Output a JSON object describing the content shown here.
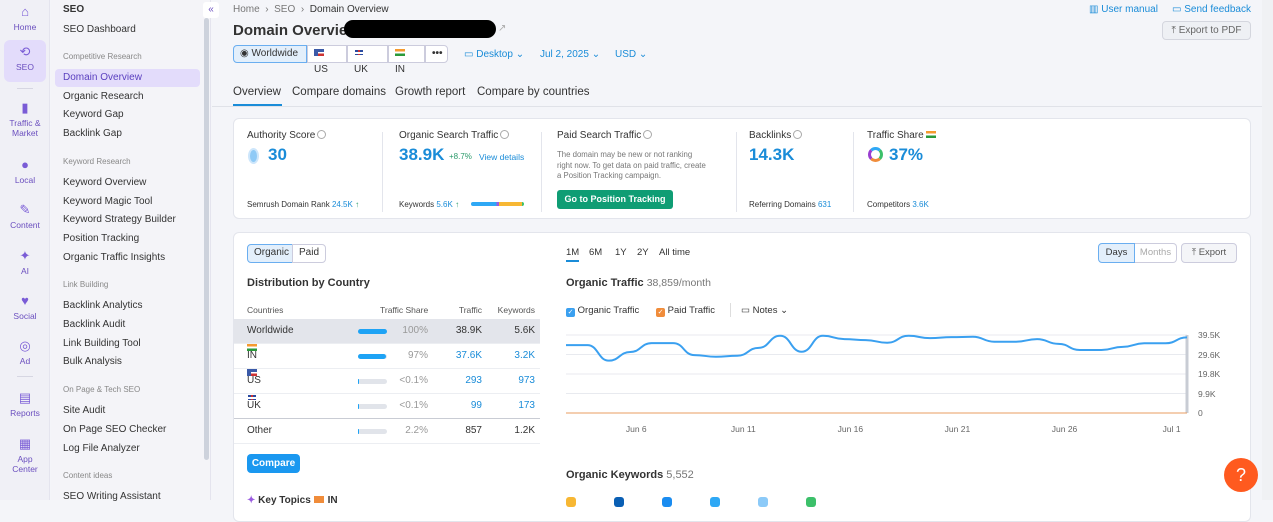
{
  "rail": [
    {
      "label": "Home",
      "icon": "home-icon"
    },
    {
      "label": "SEO",
      "icon": "seo-icon"
    },
    {
      "label": "Traffic & Market",
      "icon": "bar-chart-icon"
    },
    {
      "label": "Local",
      "icon": "pin-icon"
    },
    {
      "label": "Content",
      "icon": "pen-icon"
    },
    {
      "label": "AI",
      "icon": "sparkle-icon"
    },
    {
      "label": "Social",
      "icon": "heart-chat-icon"
    },
    {
      "label": "Ad",
      "icon": "cursor-target-icon"
    },
    {
      "label": "Reports",
      "icon": "report-icon"
    },
    {
      "label": "App Center",
      "icon": "apps-grid-icon"
    }
  ],
  "sidebar": {
    "title": "SEO",
    "dashboard": "SEO Dashboard",
    "groups": [
      {
        "heading": "Competitive Research",
        "items": [
          "Domain Overview",
          "Organic Research",
          "Keyword Gap",
          "Backlink Gap"
        ]
      },
      {
        "heading": "Keyword Research",
        "items": [
          "Keyword Overview",
          "Keyword Magic Tool",
          "Keyword Strategy Builder",
          "Position Tracking",
          "Organic Traffic Insights"
        ]
      },
      {
        "heading": "Link Building",
        "items": [
          "Backlink Analytics",
          "Backlink Audit",
          "Link Building Tool",
          "Bulk Analysis"
        ]
      },
      {
        "heading": "On Page & Tech SEO",
        "items": [
          "Site Audit",
          "On Page SEO Checker",
          "Log File Analyzer"
        ]
      },
      {
        "heading": "Content ideas",
        "items": [
          "SEO Writing Assistant"
        ]
      }
    ],
    "active": "Domain Overview"
  },
  "breadcrumb": [
    "Home",
    "SEO",
    "Domain Overview"
  ],
  "header": {
    "title": "Domain Overview",
    "user_manual": "User manual",
    "send_feedback": "Send feedback",
    "export_pdf": "Export to PDF"
  },
  "db_selector": {
    "worldwide": "Worldwide",
    "us": "US",
    "uk": "UK",
    "in": "IN",
    "more": "•••"
  },
  "filters": {
    "device": "Desktop",
    "date": "Jul 2, 2025",
    "currency": "USD"
  },
  "tabs": [
    "Overview",
    "Compare domains",
    "Growth report",
    "Compare by countries"
  ],
  "metrics": {
    "authority": {
      "label": "Authority Score",
      "value": "30",
      "sub_label": "Semrush Domain Rank",
      "sub_value": "24.5K"
    },
    "organic": {
      "label": "Organic Search Traffic",
      "value": "38.9K",
      "change": "+8.7%",
      "link": "View details",
      "sub_label": "Keywords",
      "sub_value": "5.6K"
    },
    "paid": {
      "label": "Paid Search Traffic",
      "text": "The domain may be new or not ranking right now. To get data on paid traffic, create a Position Tracking campaign.",
      "button": "Go to Position Tracking"
    },
    "backlinks": {
      "label": "Backlinks",
      "value": "14.3K",
      "sub_label": "Referring Domains",
      "sub_value": "631"
    },
    "share": {
      "label": "Traffic Share",
      "value": "37%",
      "sub_label": "Competitors",
      "sub_value": "3.6K"
    }
  },
  "distribution": {
    "toggle": [
      "Organic",
      "Paid"
    ],
    "title": "Distribution by Country",
    "columns": [
      "Countries",
      "Traffic Share",
      "Traffic",
      "Keywords"
    ],
    "rows": [
      {
        "country": "Worldwide",
        "share": "100%",
        "fill": 100,
        "traffic": "38.9K",
        "keywords": "5.6K"
      },
      {
        "country": "IN",
        "flag": "in",
        "share": "97%",
        "fill": 97,
        "traffic": "37.6K",
        "keywords": "3.2K"
      },
      {
        "country": "US",
        "flag": "us",
        "share": "<0.1%",
        "fill": 1,
        "traffic": "293",
        "keywords": "973"
      },
      {
        "country": "UK",
        "flag": "uk",
        "share": "<0.1%",
        "fill": 1,
        "traffic": "99",
        "keywords": "173"
      },
      {
        "country": "Other",
        "share": "2.2%",
        "fill": 3,
        "traffic": "857",
        "keywords": "1.2K"
      }
    ],
    "compare": "Compare"
  },
  "chart_controls": {
    "ranges": [
      "1M",
      "6M",
      "1Y",
      "2Y",
      "All time"
    ],
    "active_range": "1M",
    "days": "Days",
    "months": "Months",
    "export": "Export",
    "notes": "Notes"
  },
  "chart_data": {
    "type": "line",
    "title": "Organic Traffic",
    "subtitle": "38,859/month",
    "x": [
      "Jun 3",
      "Jun 4",
      "Jun 5",
      "Jun 6",
      "Jun 7",
      "Jun 8",
      "Jun 9",
      "Jun 10",
      "Jun 11",
      "Jun 12",
      "Jun 13",
      "Jun 14",
      "Jun 15",
      "Jun 16",
      "Jun 17",
      "Jun 18",
      "Jun 19",
      "Jun 20",
      "Jun 21",
      "Jun 22",
      "Jun 23",
      "Jun 24",
      "Jun 25",
      "Jun 26",
      "Jun 27",
      "Jun 28",
      "Jun 29",
      "Jun 30",
      "Jul 1",
      "Jul 2"
    ],
    "series": [
      {
        "name": "Organic Traffic",
        "color": "#3aa0f0",
        "values": [
          34400,
          34400,
          26500,
          30900,
          35400,
          35400,
          29300,
          28500,
          29000,
          33000,
          39100,
          31000,
          39100,
          37400,
          36900,
          35600,
          39100,
          37900,
          38400,
          38600,
          36100,
          36100,
          37400,
          35000,
          31900,
          31900,
          33500,
          35300,
          35300,
          38300
        ]
      },
      {
        "name": "Paid Traffic",
        "color": "#f08c3a",
        "values": [
          0,
          0,
          0,
          0,
          0,
          0,
          0,
          0,
          0,
          0,
          0,
          0,
          0,
          0,
          0,
          0,
          0,
          0,
          0,
          0,
          0,
          0,
          0,
          0,
          0,
          0,
          0,
          0,
          0,
          0
        ]
      }
    ],
    "xticks": [
      "Jun 6",
      "Jun 11",
      "Jun 16",
      "Jun 21",
      "Jun 26",
      "Jul 1"
    ],
    "yticks": [
      "39.5K",
      "29.6K",
      "19.8K",
      "9.9K",
      "0"
    ],
    "ylim": [
      0,
      39500
    ],
    "grid": true,
    "legend": "top-left"
  },
  "keywords": {
    "title": "Organic Keywords",
    "value": "5,552"
  },
  "key_topics": {
    "title": "Key Topics",
    "flag": "IN"
  },
  "help": "?"
}
